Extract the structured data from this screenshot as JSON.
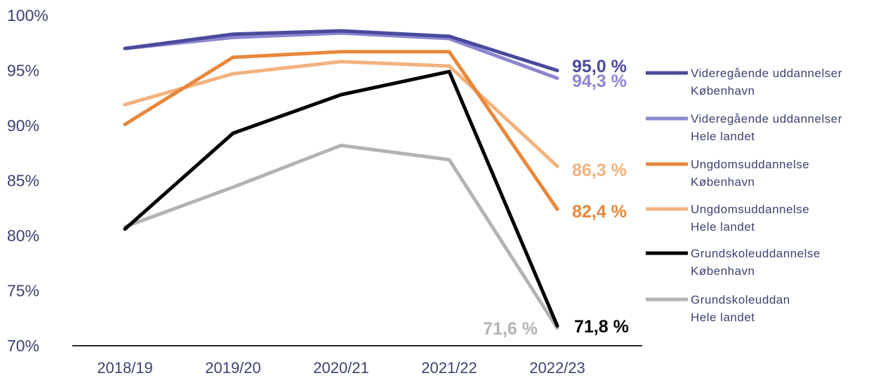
{
  "chart_data": {
    "type": "line",
    "categories": [
      "2018/19",
      "2019/20",
      "2020/21",
      "2021/22",
      "2022/23"
    ],
    "ylim": [
      70,
      100
    ],
    "yticks": [
      "100%",
      "95%",
      "90%",
      "85%",
      "80%",
      "75%",
      "70%"
    ],
    "grid": false,
    "legend_position": "right",
    "series": [
      {
        "name_line1": "Videregående uddannelser",
        "name_line2": "København",
        "color": "#4a4a9c",
        "values": [
          97.0,
          98.3,
          98.6,
          98.1,
          95.0
        ],
        "end_label": "95,0 %",
        "label_color": "#4a4a9c"
      },
      {
        "name_line1": "Videregående uddannelser",
        "name_line2": "Hele landet",
        "color": "#8c85d1",
        "values": [
          97.0,
          98.0,
          98.4,
          97.9,
          94.3
        ],
        "end_label": "94,3 %",
        "label_color": "#8c85d1"
      },
      {
        "name_line1": "Ungdomsuddannelse",
        "name_line2": "København",
        "color": "#e8873a",
        "values": [
          90.1,
          96.2,
          96.7,
          96.7,
          82.4
        ],
        "end_label": "82,4 %",
        "label_color": "#e8873a"
      },
      {
        "name_line1": "Ungdomsuddannelse",
        "name_line2": "Hele landet",
        "color": "#f2b27e",
        "values": [
          91.9,
          94.7,
          95.8,
          95.4,
          86.3
        ],
        "end_label": "86,3 %",
        "label_color": "#f2b27e"
      },
      {
        "name_line1": "Grundskoleuddannelse",
        "name_line2": "København",
        "color": "#000000",
        "values": [
          80.6,
          89.3,
          92.8,
          94.9,
          71.8
        ],
        "end_label": "71,8 %",
        "label_color": "#000000"
      },
      {
        "name_line1": "Grundskoleuddan",
        "name_line2": "Hele landet",
        "color": "#b3b3b3",
        "values": [
          80.8,
          84.4,
          88.2,
          86.9,
          71.6
        ],
        "end_label": "71,6 %",
        "label_color": "#b3b3b3"
      }
    ]
  }
}
